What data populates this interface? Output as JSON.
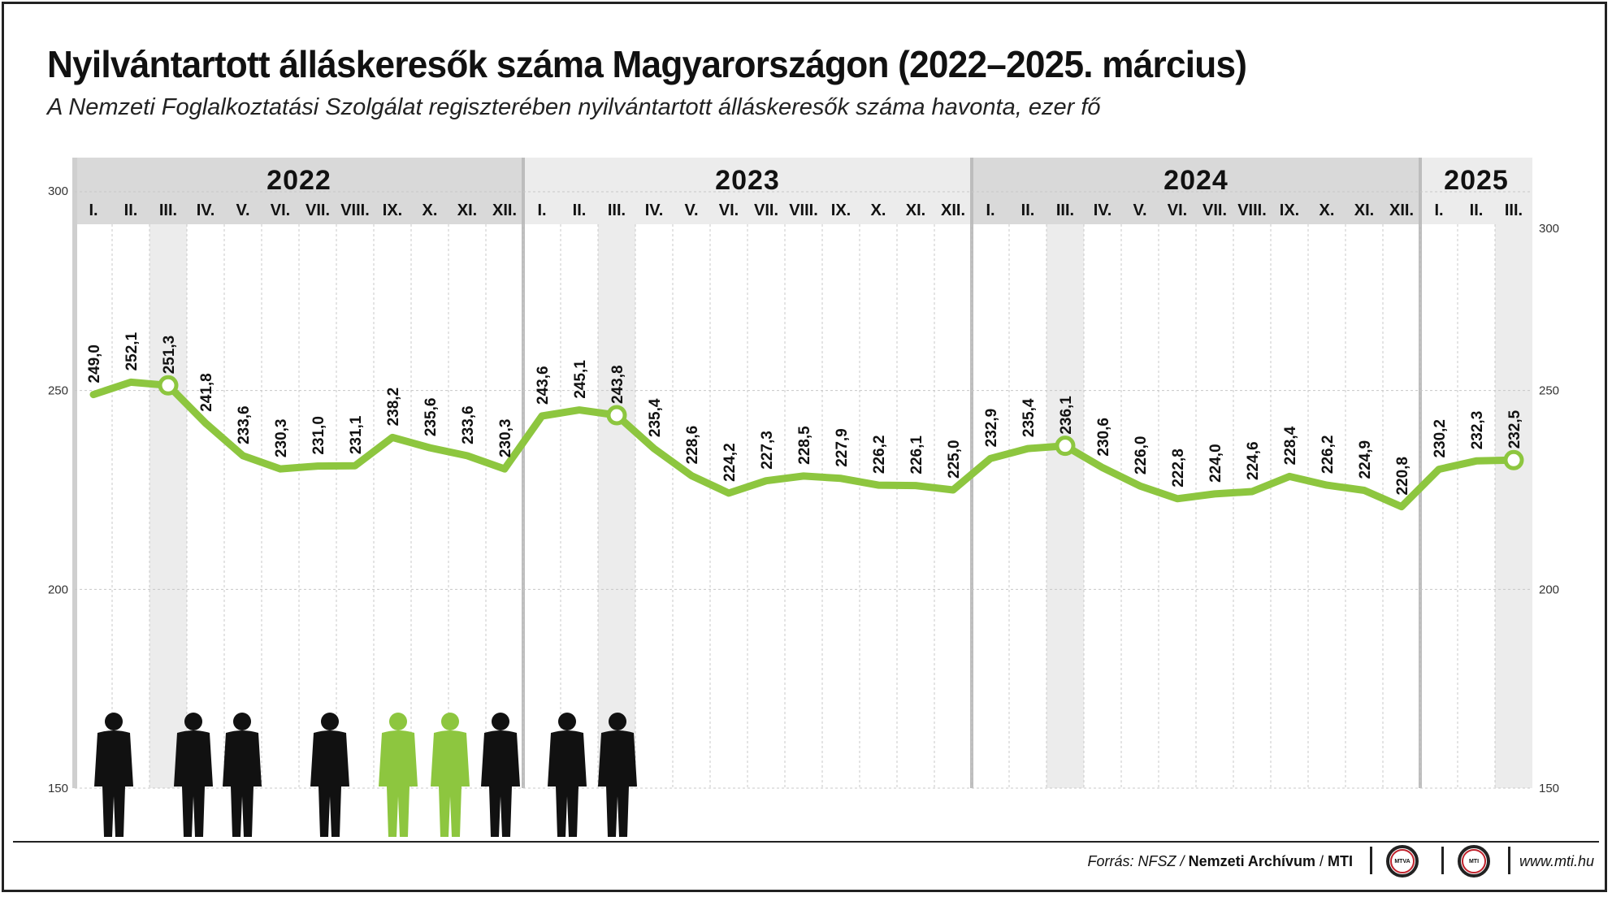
{
  "title": "Nyilvántartott álláskeresők száma Magyarországon (2022–2025. március)",
  "subtitle": "A Nemzeti Foglalkoztatási Szolgálat regiszterében nyilvántartott álláskeresők száma havonta, ezer fő",
  "footer": {
    "source_prefix": "Forrás: NFSZ /",
    "source_bold": "Nemzeti Archívum",
    "source_sep": "/",
    "source_mti": "MTI",
    "logo1": "MTVA",
    "logo2": "MTI",
    "url": "www.mti.hu"
  },
  "colors": {
    "line": "#8dc63f",
    "header": "#d9d9d9",
    "header_light": "#ececec",
    "highlight": "#ececec"
  },
  "chart_data": {
    "type": "line",
    "title": "Nyilvántartott álláskeresők száma Magyarországon (2022–2025. március)",
    "ylim": [
      150,
      300
    ],
    "yticks": [
      150,
      200,
      250,
      300
    ],
    "grid": true,
    "years": [
      {
        "label": "2022",
        "months": 12
      },
      {
        "label": "2023",
        "months": 12
      },
      {
        "label": "2024",
        "months": 12
      },
      {
        "label": "2025",
        "months": 3
      }
    ],
    "month_labels": [
      "I.",
      "II.",
      "III.",
      "IV.",
      "V.",
      "VI.",
      "VII.",
      "VIII.",
      "IX.",
      "X.",
      "XI.",
      "XII."
    ],
    "highlighted_points": [
      2,
      14,
      26,
      38
    ],
    "values": [
      249.0,
      252.1,
      251.3,
      241.8,
      233.6,
      230.3,
      231.0,
      231.1,
      238.2,
      235.6,
      233.6,
      230.3,
      243.6,
      245.1,
      243.8,
      235.4,
      228.6,
      224.2,
      227.3,
      228.5,
      227.9,
      226.2,
      226.1,
      225.0,
      232.9,
      235.4,
      236.1,
      230.6,
      226.0,
      222.8,
      224.0,
      224.6,
      228.4,
      226.2,
      224.9,
      220.8,
      230.2,
      232.3,
      232.5
    ],
    "labels": [
      "249,0",
      "252,1",
      "251,3",
      "241,8",
      "233,6",
      "230,3",
      "231,0",
      "231,1",
      "238,2",
      "235,6",
      "233,6",
      "230,3",
      "243,6",
      "245,1",
      "243,8",
      "235,4",
      "228,6",
      "224,2",
      "227,3",
      "228,5",
      "227,9",
      "226,2",
      "226,1",
      "225,0",
      "232,9",
      "235,4",
      "236,1",
      "230,6",
      "226,0",
      "222,8",
      "224,0",
      "224,6",
      "228,4",
      "226,2",
      "224,9",
      "220,8",
      "230,2",
      "232,3",
      "232,5"
    ],
    "y_tick_labels": [
      "150",
      "200",
      "250",
      "300"
    ]
  }
}
